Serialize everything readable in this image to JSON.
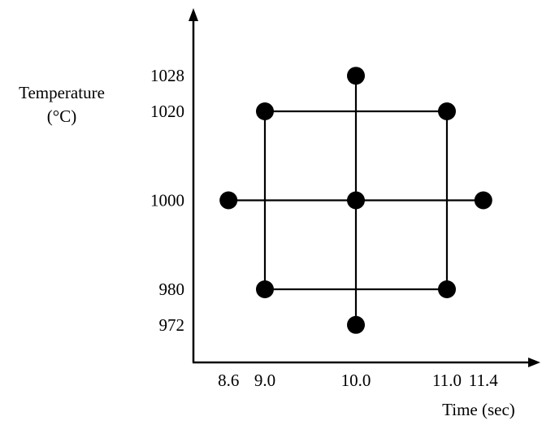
{
  "chart_data": {
    "type": "scatter",
    "title": "",
    "xlabel": "Time (sec)",
    "ylabel_line1": "Temperature",
    "ylabel_line2": "(°C)",
    "x_ticks": [
      "8.6",
      "9.0",
      "10.0",
      "11.0",
      "11.4"
    ],
    "y_ticks": [
      "1028",
      "1020",
      "1000",
      "980",
      "972"
    ],
    "points": [
      {
        "x": 9.0,
        "y": 1020
      },
      {
        "x": 11.0,
        "y": 1020
      },
      {
        "x": 9.0,
        "y": 980
      },
      {
        "x": 11.0,
        "y": 980
      },
      {
        "x": 10.0,
        "y": 1000
      },
      {
        "x": 10.0,
        "y": 1028
      },
      {
        "x": 10.0,
        "y": 972
      },
      {
        "x": 8.6,
        "y": 1000
      },
      {
        "x": 11.4,
        "y": 1000
      }
    ],
    "segments": [
      {
        "from": [
          9.0,
          1020
        ],
        "to": [
          11.0,
          1020
        ]
      },
      {
        "from": [
          9.0,
          980
        ],
        "to": [
          11.0,
          980
        ]
      },
      {
        "from": [
          9.0,
          980
        ],
        "to": [
          9.0,
          1020
        ]
      },
      {
        "from": [
          11.0,
          980
        ],
        "to": [
          11.0,
          1020
        ]
      },
      {
        "from": [
          8.6,
          1000
        ],
        "to": [
          11.4,
          1000
        ]
      },
      {
        "from": [
          10.0,
          972
        ],
        "to": [
          10.0,
          1028
        ]
      }
    ],
    "xlim": [
      8.6,
      11.4
    ],
    "ylim": [
      972,
      1028
    ],
    "grid": false
  }
}
